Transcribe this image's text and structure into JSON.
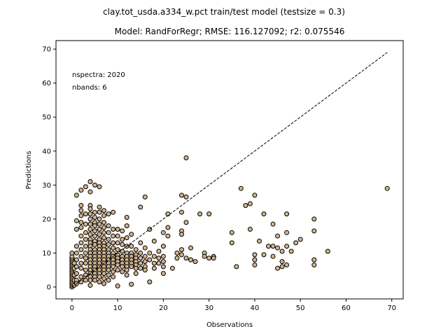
{
  "chart_data": {
    "type": "scatter",
    "suptitle": "clay.tot_usda.a334_w.pct train/test model (testsize = 0.3)",
    "title": "Model: RandForRegr; RMSE: 116.127092; r2: 0.075546",
    "xlabel": "Observations",
    "ylabel": "Predictions",
    "xlim": [
      -3.5,
      72.5
    ],
    "ylim": [
      -3.5,
      72.5
    ],
    "xticks": [
      0,
      10,
      20,
      30,
      40,
      50,
      60,
      70
    ],
    "yticks": [
      0,
      10,
      20,
      30,
      40,
      50,
      60,
      70
    ],
    "annotations": [
      "nspectra: 2020",
      "nbands: 6"
    ],
    "reference_line": {
      "x": [
        0,
        69
      ],
      "y": [
        0,
        69
      ],
      "style": "dashed"
    },
    "marker_face_color": "#d2b48c",
    "marker_edge_color": "#000000",
    "points": [
      [
        0,
        0
      ],
      [
        0,
        0.5
      ],
      [
        0,
        1
      ],
      [
        0,
        1.5
      ],
      [
        0,
        2
      ],
      [
        0,
        2.5
      ],
      [
        0,
        3
      ],
      [
        0,
        3.5
      ],
      [
        0,
        4
      ],
      [
        0,
        4.5
      ],
      [
        0,
        5
      ],
      [
        0,
        5.5
      ],
      [
        0,
        6
      ],
      [
        0,
        6.5
      ],
      [
        0,
        7
      ],
      [
        0,
        7.5
      ],
      [
        0,
        8
      ],
      [
        0,
        8.5
      ],
      [
        0,
        9
      ],
      [
        0,
        10
      ],
      [
        0.5,
        0.5
      ],
      [
        0.5,
        2
      ],
      [
        0.5,
        3.5
      ],
      [
        0.5,
        5.5
      ],
      [
        0.5,
        7
      ],
      [
        1,
        27
      ],
      [
        1,
        19.5
      ],
      [
        1,
        17
      ],
      [
        1,
        12
      ],
      [
        1,
        10
      ],
      [
        1,
        8
      ],
      [
        1,
        6
      ],
      [
        1,
        4
      ],
      [
        1,
        2
      ],
      [
        1,
        1
      ],
      [
        2,
        28.5
      ],
      [
        2,
        24
      ],
      [
        2,
        22.5
      ],
      [
        2,
        21
      ],
      [
        2,
        19
      ],
      [
        2,
        17.5
      ],
      [
        2,
        15
      ],
      [
        2,
        13
      ],
      [
        2,
        11
      ],
      [
        2,
        9
      ],
      [
        2,
        7
      ],
      [
        2,
        5.5
      ],
      [
        2,
        3
      ],
      [
        2,
        1.5
      ],
      [
        3,
        29.5
      ],
      [
        3,
        21.5
      ],
      [
        3,
        18.5
      ],
      [
        3,
        16
      ],
      [
        3,
        14
      ],
      [
        3,
        12
      ],
      [
        3,
        10
      ],
      [
        3,
        8.5
      ],
      [
        3,
        7
      ],
      [
        3,
        5
      ],
      [
        3,
        3.5
      ],
      [
        3,
        2
      ],
      [
        4,
        31
      ],
      [
        4,
        28
      ],
      [
        4,
        24
      ],
      [
        4,
        23
      ],
      [
        4,
        21.5
      ],
      [
        4,
        20
      ],
      [
        4,
        18.5
      ],
      [
        4,
        17
      ],
      [
        4,
        15.5
      ],
      [
        4,
        14
      ],
      [
        4,
        13
      ],
      [
        4,
        12
      ],
      [
        4,
        11
      ],
      [
        4,
        10
      ],
      [
        4,
        9
      ],
      [
        4,
        8
      ],
      [
        4,
        7
      ],
      [
        4,
        6
      ],
      [
        4,
        5
      ],
      [
        4,
        4
      ],
      [
        4,
        3
      ],
      [
        4,
        2
      ],
      [
        4,
        0.5
      ],
      [
        5,
        30
      ],
      [
        5,
        22
      ],
      [
        5,
        20.5
      ],
      [
        5,
        19
      ],
      [
        5,
        18
      ],
      [
        5,
        16.5
      ],
      [
        5,
        15
      ],
      [
        5,
        13.5
      ],
      [
        5,
        12.5
      ],
      [
        5,
        11
      ],
      [
        5,
        10
      ],
      [
        5,
        9
      ],
      [
        5,
        8
      ],
      [
        5,
        7
      ],
      [
        5,
        6
      ],
      [
        5,
        5
      ],
      [
        5,
        4
      ],
      [
        5,
        3
      ],
      [
        5,
        2
      ],
      [
        6,
        29.5
      ],
      [
        6,
        23.5
      ],
      [
        6,
        22
      ],
      [
        6,
        20
      ],
      [
        6,
        18.5
      ],
      [
        6,
        17
      ],
      [
        6,
        15.5
      ],
      [
        6,
        14
      ],
      [
        6,
        13
      ],
      [
        6,
        12
      ],
      [
        6,
        11
      ],
      [
        6,
        10
      ],
      [
        6,
        9
      ],
      [
        6,
        8
      ],
      [
        6,
        7
      ],
      [
        6,
        6
      ],
      [
        6,
        5
      ],
      [
        6,
        4
      ],
      [
        6,
        3
      ],
      [
        6,
        1.5
      ],
      [
        7,
        22.5
      ],
      [
        7,
        21
      ],
      [
        7,
        19
      ],
      [
        7,
        17.5
      ],
      [
        7,
        16
      ],
      [
        7,
        14.5
      ],
      [
        7,
        13
      ],
      [
        7,
        12
      ],
      [
        7,
        11
      ],
      [
        7,
        10
      ],
      [
        7,
        9
      ],
      [
        7,
        8
      ],
      [
        7,
        7
      ],
      [
        7,
        6
      ],
      [
        7,
        5
      ],
      [
        7,
        4
      ],
      [
        7,
        2.5
      ],
      [
        7,
        1
      ],
      [
        8,
        21.5
      ],
      [
        8,
        18
      ],
      [
        8,
        16
      ],
      [
        8,
        14
      ],
      [
        8,
        12.5
      ],
      [
        8,
        11
      ],
      [
        8,
        10
      ],
      [
        8,
        9
      ],
      [
        8,
        8
      ],
      [
        8,
        7
      ],
      [
        8,
        6
      ],
      [
        8,
        5
      ],
      [
        8,
        3.5
      ],
      [
        8,
        2
      ],
      [
        9,
        22
      ],
      [
        9,
        17
      ],
      [
        9,
        15
      ],
      [
        9,
        13
      ],
      [
        9,
        11.5
      ],
      [
        9,
        10
      ],
      [
        9,
        9
      ],
      [
        9,
        8
      ],
      [
        9,
        7
      ],
      [
        9,
        6
      ],
      [
        9,
        4.5
      ],
      [
        9,
        3
      ],
      [
        10,
        17
      ],
      [
        10,
        15
      ],
      [
        10,
        13
      ],
      [
        10,
        11
      ],
      [
        10,
        9.5
      ],
      [
        10,
        8.5
      ],
      [
        10,
        7.5
      ],
      [
        10,
        6.5
      ],
      [
        10,
        5
      ],
      [
        10,
        0.3
      ],
      [
        11,
        16.5
      ],
      [
        11,
        14
      ],
      [
        11,
        12.5
      ],
      [
        11,
        10.5
      ],
      [
        11,
        9
      ],
      [
        11,
        8
      ],
      [
        11,
        7
      ],
      [
        11,
        6
      ],
      [
        11,
        4.5
      ],
      [
        12,
        20.5
      ],
      [
        12,
        18
      ],
      [
        12,
        14.5
      ],
      [
        12,
        12
      ],
      [
        12,
        10
      ],
      [
        12,
        9
      ],
      [
        12,
        8
      ],
      [
        12,
        7
      ],
      [
        12,
        6
      ],
      [
        12,
        5
      ],
      [
        12,
        3.5
      ],
      [
        13,
        15.5
      ],
      [
        13,
        12
      ],
      [
        13,
        10
      ],
      [
        13,
        9
      ],
      [
        13,
        8
      ],
      [
        13,
        7
      ],
      [
        13,
        6
      ],
      [
        13,
        0.8
      ],
      [
        14,
        11
      ],
      [
        14,
        9.5
      ],
      [
        14,
        8.5
      ],
      [
        14,
        7.5
      ],
      [
        14,
        6.5
      ],
      [
        14,
        5.5
      ],
      [
        14,
        4
      ],
      [
        15,
        23.5
      ],
      [
        15,
        13
      ],
      [
        15,
        10
      ],
      [
        15,
        8.5
      ],
      [
        15,
        7
      ],
      [
        15,
        5.5
      ],
      [
        16,
        26.5
      ],
      [
        16,
        11.5
      ],
      [
        16,
        9
      ],
      [
        16,
        7.5
      ],
      [
        16,
        6
      ],
      [
        16,
        5
      ],
      [
        17,
        17
      ],
      [
        17,
        10
      ],
      [
        17,
        8
      ],
      [
        17,
        1.5
      ],
      [
        18,
        13.5
      ],
      [
        18,
        9
      ],
      [
        18,
        7
      ],
      [
        18,
        5.5
      ],
      [
        19,
        10.5
      ],
      [
        19,
        8.5
      ],
      [
        19,
        7
      ],
      [
        20,
        16
      ],
      [
        20,
        12
      ],
      [
        20,
        9
      ],
      [
        20,
        7.5
      ],
      [
        20,
        6
      ],
      [
        20,
        4
      ],
      [
        21,
        21.5
      ],
      [
        21,
        17.5
      ],
      [
        21,
        15
      ],
      [
        22,
        5.5
      ],
      [
        23,
        10
      ],
      [
        23,
        8.5
      ],
      [
        24,
        27
      ],
      [
        24,
        22
      ],
      [
        24,
        16.5
      ],
      [
        24,
        15.5
      ],
      [
        24,
        11
      ],
      [
        24,
        9.5
      ],
      [
        25,
        38
      ],
      [
        25,
        26.5
      ],
      [
        25,
        19
      ],
      [
        25,
        8.5
      ],
      [
        26,
        11.5
      ],
      [
        26,
        8
      ],
      [
        27,
        7.5
      ],
      [
        28,
        21.5
      ],
      [
        29,
        10
      ],
      [
        29,
        9
      ],
      [
        30,
        21.5
      ],
      [
        30,
        8.5
      ],
      [
        31,
        9
      ],
      [
        31,
        8.5
      ],
      [
        35,
        16
      ],
      [
        35,
        13
      ],
      [
        36,
        6
      ],
      [
        37,
        29
      ],
      [
        38,
        24
      ],
      [
        39,
        24.5
      ],
      [
        39,
        17
      ],
      [
        40,
        27
      ],
      [
        40,
        9.5
      ],
      [
        40,
        8
      ],
      [
        40,
        6.5
      ],
      [
        41,
        13.5
      ],
      [
        42,
        21.5
      ],
      [
        42,
        9.5
      ],
      [
        43,
        12
      ],
      [
        44,
        18.5
      ],
      [
        44,
        12
      ],
      [
        44,
        9
      ],
      [
        45,
        15
      ],
      [
        45,
        11.5
      ],
      [
        45,
        5.5
      ],
      [
        46,
        10.5
      ],
      [
        46,
        7.5
      ],
      [
        46,
        6
      ],
      [
        47,
        21.5
      ],
      [
        47,
        16
      ],
      [
        47,
        12
      ],
      [
        47,
        6.5
      ],
      [
        48,
        10.5
      ],
      [
        49,
        13
      ],
      [
        50,
        14
      ],
      [
        53,
        20
      ],
      [
        53,
        16.5
      ],
      [
        53,
        8
      ],
      [
        53,
        6.5
      ],
      [
        56,
        10.5
      ],
      [
        69,
        29
      ]
    ]
  }
}
